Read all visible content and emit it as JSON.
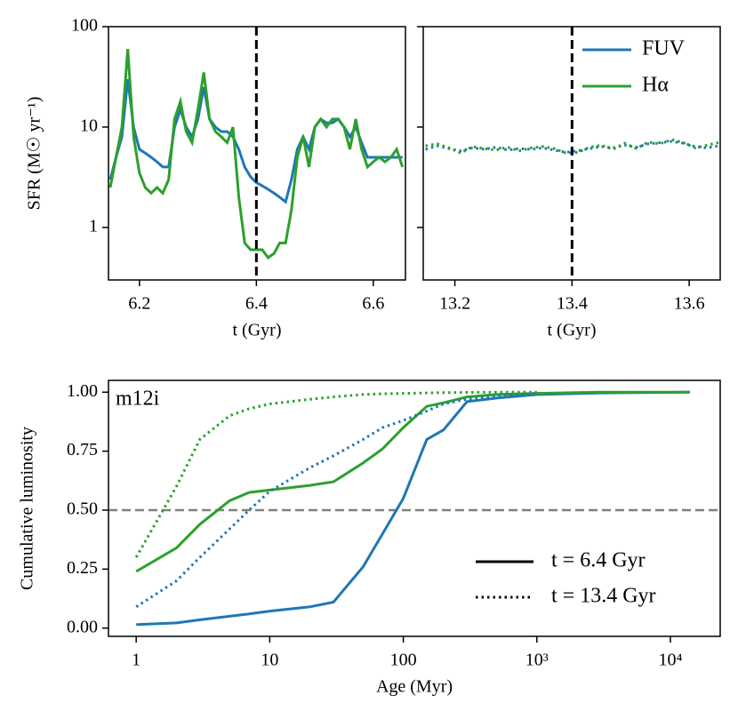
{
  "chart_data": [
    {
      "type": "line",
      "ylabel": "SFR (M☉ yr⁻¹)",
      "xlabel": "t (Gyr)",
      "x": [
        6.15,
        6.16,
        6.17,
        6.18,
        6.19,
        6.2,
        6.21,
        6.22,
        6.23,
        6.24,
        6.25,
        6.26,
        6.27,
        6.28,
        6.29,
        6.3,
        6.31,
        6.32,
        6.33,
        6.34,
        6.35,
        6.36,
        6.37,
        6.38,
        6.39,
        6.4,
        6.41,
        6.42,
        6.43,
        6.44,
        6.45,
        6.46,
        6.47,
        6.48,
        6.49,
        6.5,
        6.51,
        6.52,
        6.53,
        6.54,
        6.55,
        6.56,
        6.57,
        6.58,
        6.59,
        6.6,
        6.61,
        6.62,
        6.63,
        6.64,
        6.65
      ],
      "series": [
        {
          "color": "#1f77b4",
          "values": [
            3,
            5,
            8,
            30,
            10,
            6,
            5.5,
            5,
            4.5,
            4,
            4,
            10,
            15,
            10,
            8,
            12,
            25,
            12,
            10,
            9,
            9,
            8,
            6,
            4,
            3.2,
            2.8,
            2.6,
            2.4,
            2.2,
            2,
            1.8,
            3,
            6,
            8,
            6,
            10,
            12,
            11,
            11,
            12,
            10,
            8,
            10,
            7,
            5,
            5,
            5,
            5,
            5,
            5,
            5
          ]
        },
        {
          "color": "#2ca02c",
          "values": [
            2.5,
            5,
            10,
            60,
            8,
            3.5,
            2.5,
            2.2,
            2.5,
            2.2,
            3,
            12,
            18,
            9,
            7,
            15,
            35,
            12,
            9,
            8,
            7,
            10,
            2,
            0.7,
            0.6,
            0.6,
            0.6,
            0.5,
            0.55,
            0.7,
            0.7,
            1.5,
            5,
            8,
            4,
            10,
            12,
            10,
            12,
            12,
            10,
            6,
            12,
            6,
            4,
            4.5,
            5,
            4.5,
            5,
            6,
            4
          ]
        }
      ],
      "xlim": [
        6.147,
        6.655
      ],
      "ylim": [
        0.3,
        100
      ],
      "xticks": [
        6.2,
        6.4,
        6.6
      ],
      "yticks": [
        1,
        10,
        100
      ],
      "yscale": "log",
      "vline": 6.4
    },
    {
      "type": "line",
      "xlabel": "t (Gyr)",
      "x": [
        13.15,
        13.17,
        13.19,
        13.21,
        13.23,
        13.25,
        13.27,
        13.29,
        13.31,
        13.33,
        13.35,
        13.37,
        13.39,
        13.41,
        13.43,
        13.45,
        13.47,
        13.49,
        13.51,
        13.53,
        13.55,
        13.57,
        13.59,
        13.61,
        13.63,
        13.65
      ],
      "series": [
        {
          "name": "FUV",
          "color": "#1f77b4",
          "linestyle": "dotted",
          "values": [
            6,
            6.5,
            6.1,
            5.8,
            6.2,
            6,
            6.3,
            5.9,
            6.1,
            6,
            6.2,
            5.9,
            5.6,
            5.8,
            6.1,
            6.4,
            6.2,
            6.6,
            6.3,
            6.8,
            7,
            7.2,
            6.9,
            6.4,
            6.2,
            6.5
          ]
        },
        {
          "name": "Hα",
          "color": "#2ca02c",
          "linestyle": "dotted",
          "values": [
            6.5,
            6.8,
            6.2,
            5.5,
            6.4,
            6.1,
            5.9,
            6.3,
            5.8,
            6.2,
            6.4,
            6.1,
            5.5,
            5.6,
            6.3,
            6.6,
            6,
            6.9,
            6.1,
            7.1,
            6.8,
            7.5,
            7,
            6.2,
            6.6,
            7
          ]
        }
      ],
      "xlim": [
        13.146,
        13.653
      ],
      "ylim": [
        0.3,
        100
      ],
      "xticks": [
        13.2,
        13.4,
        13.6
      ],
      "yticks": [
        1,
        10,
        100
      ],
      "yscale": "log",
      "vline": 13.4,
      "legend": "upper right"
    },
    {
      "type": "line",
      "ylabel": "Cumulative luminosity",
      "xlabel": "Age (Myr)",
      "annotation": "m12i",
      "x": [
        1,
        2,
        3,
        5,
        7,
        10,
        20,
        30,
        50,
        70,
        100,
        150,
        200,
        300,
        500,
        1000,
        3000,
        14000
      ],
      "series": [
        {
          "color": "#1f77b4",
          "linestyle": "solid",
          "values": [
            0.015,
            0.022,
            0.035,
            0.05,
            0.06,
            0.072,
            0.09,
            0.11,
            0.26,
            0.4,
            0.55,
            0.8,
            0.84,
            0.96,
            0.975,
            0.99,
            0.997,
            1.0
          ]
        },
        {
          "color": "#2ca02c",
          "linestyle": "solid",
          "values": [
            0.24,
            0.34,
            0.44,
            0.54,
            0.575,
            0.585,
            0.605,
            0.62,
            0.7,
            0.76,
            0.85,
            0.94,
            0.955,
            0.98,
            0.99,
            0.995,
            1.0,
            1.0
          ]
        },
        {
          "color": "#1f77b4",
          "linestyle": "dotted",
          "values": [
            0.09,
            0.2,
            0.3,
            0.42,
            0.5,
            0.58,
            0.68,
            0.73,
            0.8,
            0.85,
            0.88,
            0.92,
            0.95,
            0.97,
            0.985,
            0.995,
            null,
            null
          ]
        },
        {
          "color": "#2ca02c",
          "linestyle": "dotted",
          "values": [
            0.3,
            0.6,
            0.8,
            0.9,
            0.93,
            0.95,
            0.97,
            0.98,
            0.99,
            0.993,
            0.995,
            0.997,
            0.998,
            0.999,
            1.0,
            1.0,
            null,
            null
          ]
        }
      ],
      "style_legend": [
        {
          "label": "t = 6.4 Gyr",
          "linestyle": "solid"
        },
        {
          "label": "t = 13.4 Gyr",
          "linestyle": "dotted"
        }
      ],
      "legend": "lower right",
      "xlim": [
        0.62,
        23600
      ],
      "ylim": [
        -0.035,
        1.05
      ],
      "xscale": "log",
      "xticks": [
        1,
        10,
        100,
        {
          "value": 1000,
          "label": "10³"
        },
        {
          "value": 10000,
          "label": "10⁴"
        }
      ],
      "yticks": [
        {
          "value": 0,
          "label": "0.00"
        },
        {
          "value": 0.25,
          "label": "0.25"
        },
        {
          "value": 0.5,
          "label": "0.50"
        },
        {
          "value": 0.75,
          "label": "0.75"
        },
        {
          "value": 1,
          "label": "1.00"
        }
      ],
      "hline": 0.5
    }
  ]
}
